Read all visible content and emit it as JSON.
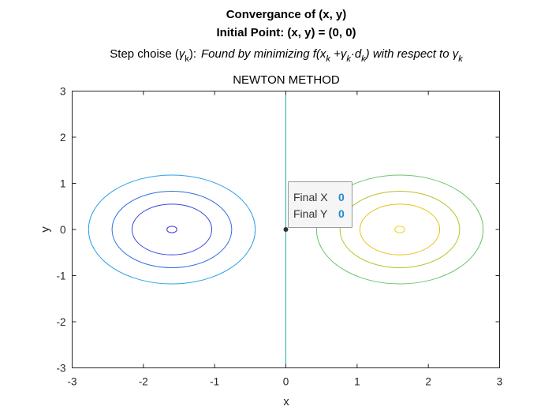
{
  "chart_data": {
    "type": "contour",
    "title_lines": [
      "Convergance of (x, y)",
      "Initial Point: (x, y) = (0, 0)"
    ],
    "subtitle": {
      "lead": "Step choise (",
      "gamma": "γ",
      "k": "k",
      "close": "):",
      "found_text": "Found by minimizing f(x",
      "plus": " +",
      "dot_d": "·d",
      "rparen": ")",
      "respect_text": " with respect to "
    },
    "axes_title": "NEWTON METHOD",
    "xlabel": "x",
    "ylabel": "y",
    "xlim": [
      -3,
      3
    ],
    "ylim": [
      -3,
      3
    ],
    "xticks": [
      "-3",
      "-2",
      "-1",
      "0",
      "1",
      "2",
      "3"
    ],
    "yticks": [
      "-3",
      "-2",
      "-1",
      "0",
      "1",
      "2",
      "3"
    ],
    "contours": [
      {
        "center": [
          -1.6,
          0
        ],
        "rx": 0.07,
        "ry": 0.07,
        "color": "#3a2fd6"
      },
      {
        "center": [
          -1.6,
          0
        ],
        "rx": 0.56,
        "ry": 0.55,
        "color": "#3747e0"
      },
      {
        "center": [
          -1.6,
          0
        ],
        "rx": 0.84,
        "ry": 0.83,
        "color": "#2e6fe0"
      },
      {
        "center": [
          -1.6,
          0
        ],
        "rx": 1.17,
        "ry": 1.18,
        "color": "#2aa0e8"
      },
      {
        "center": [
          1.6,
          0
        ],
        "rx": 0.07,
        "ry": 0.07,
        "color": "#f2d60c"
      },
      {
        "center": [
          1.6,
          0
        ],
        "rx": 0.56,
        "ry": 0.55,
        "color": "#e6c21a"
      },
      {
        "center": [
          1.6,
          0
        ],
        "rx": 0.84,
        "ry": 0.83,
        "color": "#b8c22a"
      },
      {
        "center": [
          1.6,
          0
        ],
        "rx": 1.17,
        "ry": 1.18,
        "color": "#6cc46a"
      }
    ],
    "vertical_line": {
      "x": 0,
      "color": "#22b3a8"
    },
    "point": {
      "x": 0,
      "y": 0,
      "color": "#333333"
    },
    "datatip": {
      "label_x": "Final X",
      "value_x": "0",
      "label_y": "Final Y",
      "value_y": "0"
    }
  }
}
